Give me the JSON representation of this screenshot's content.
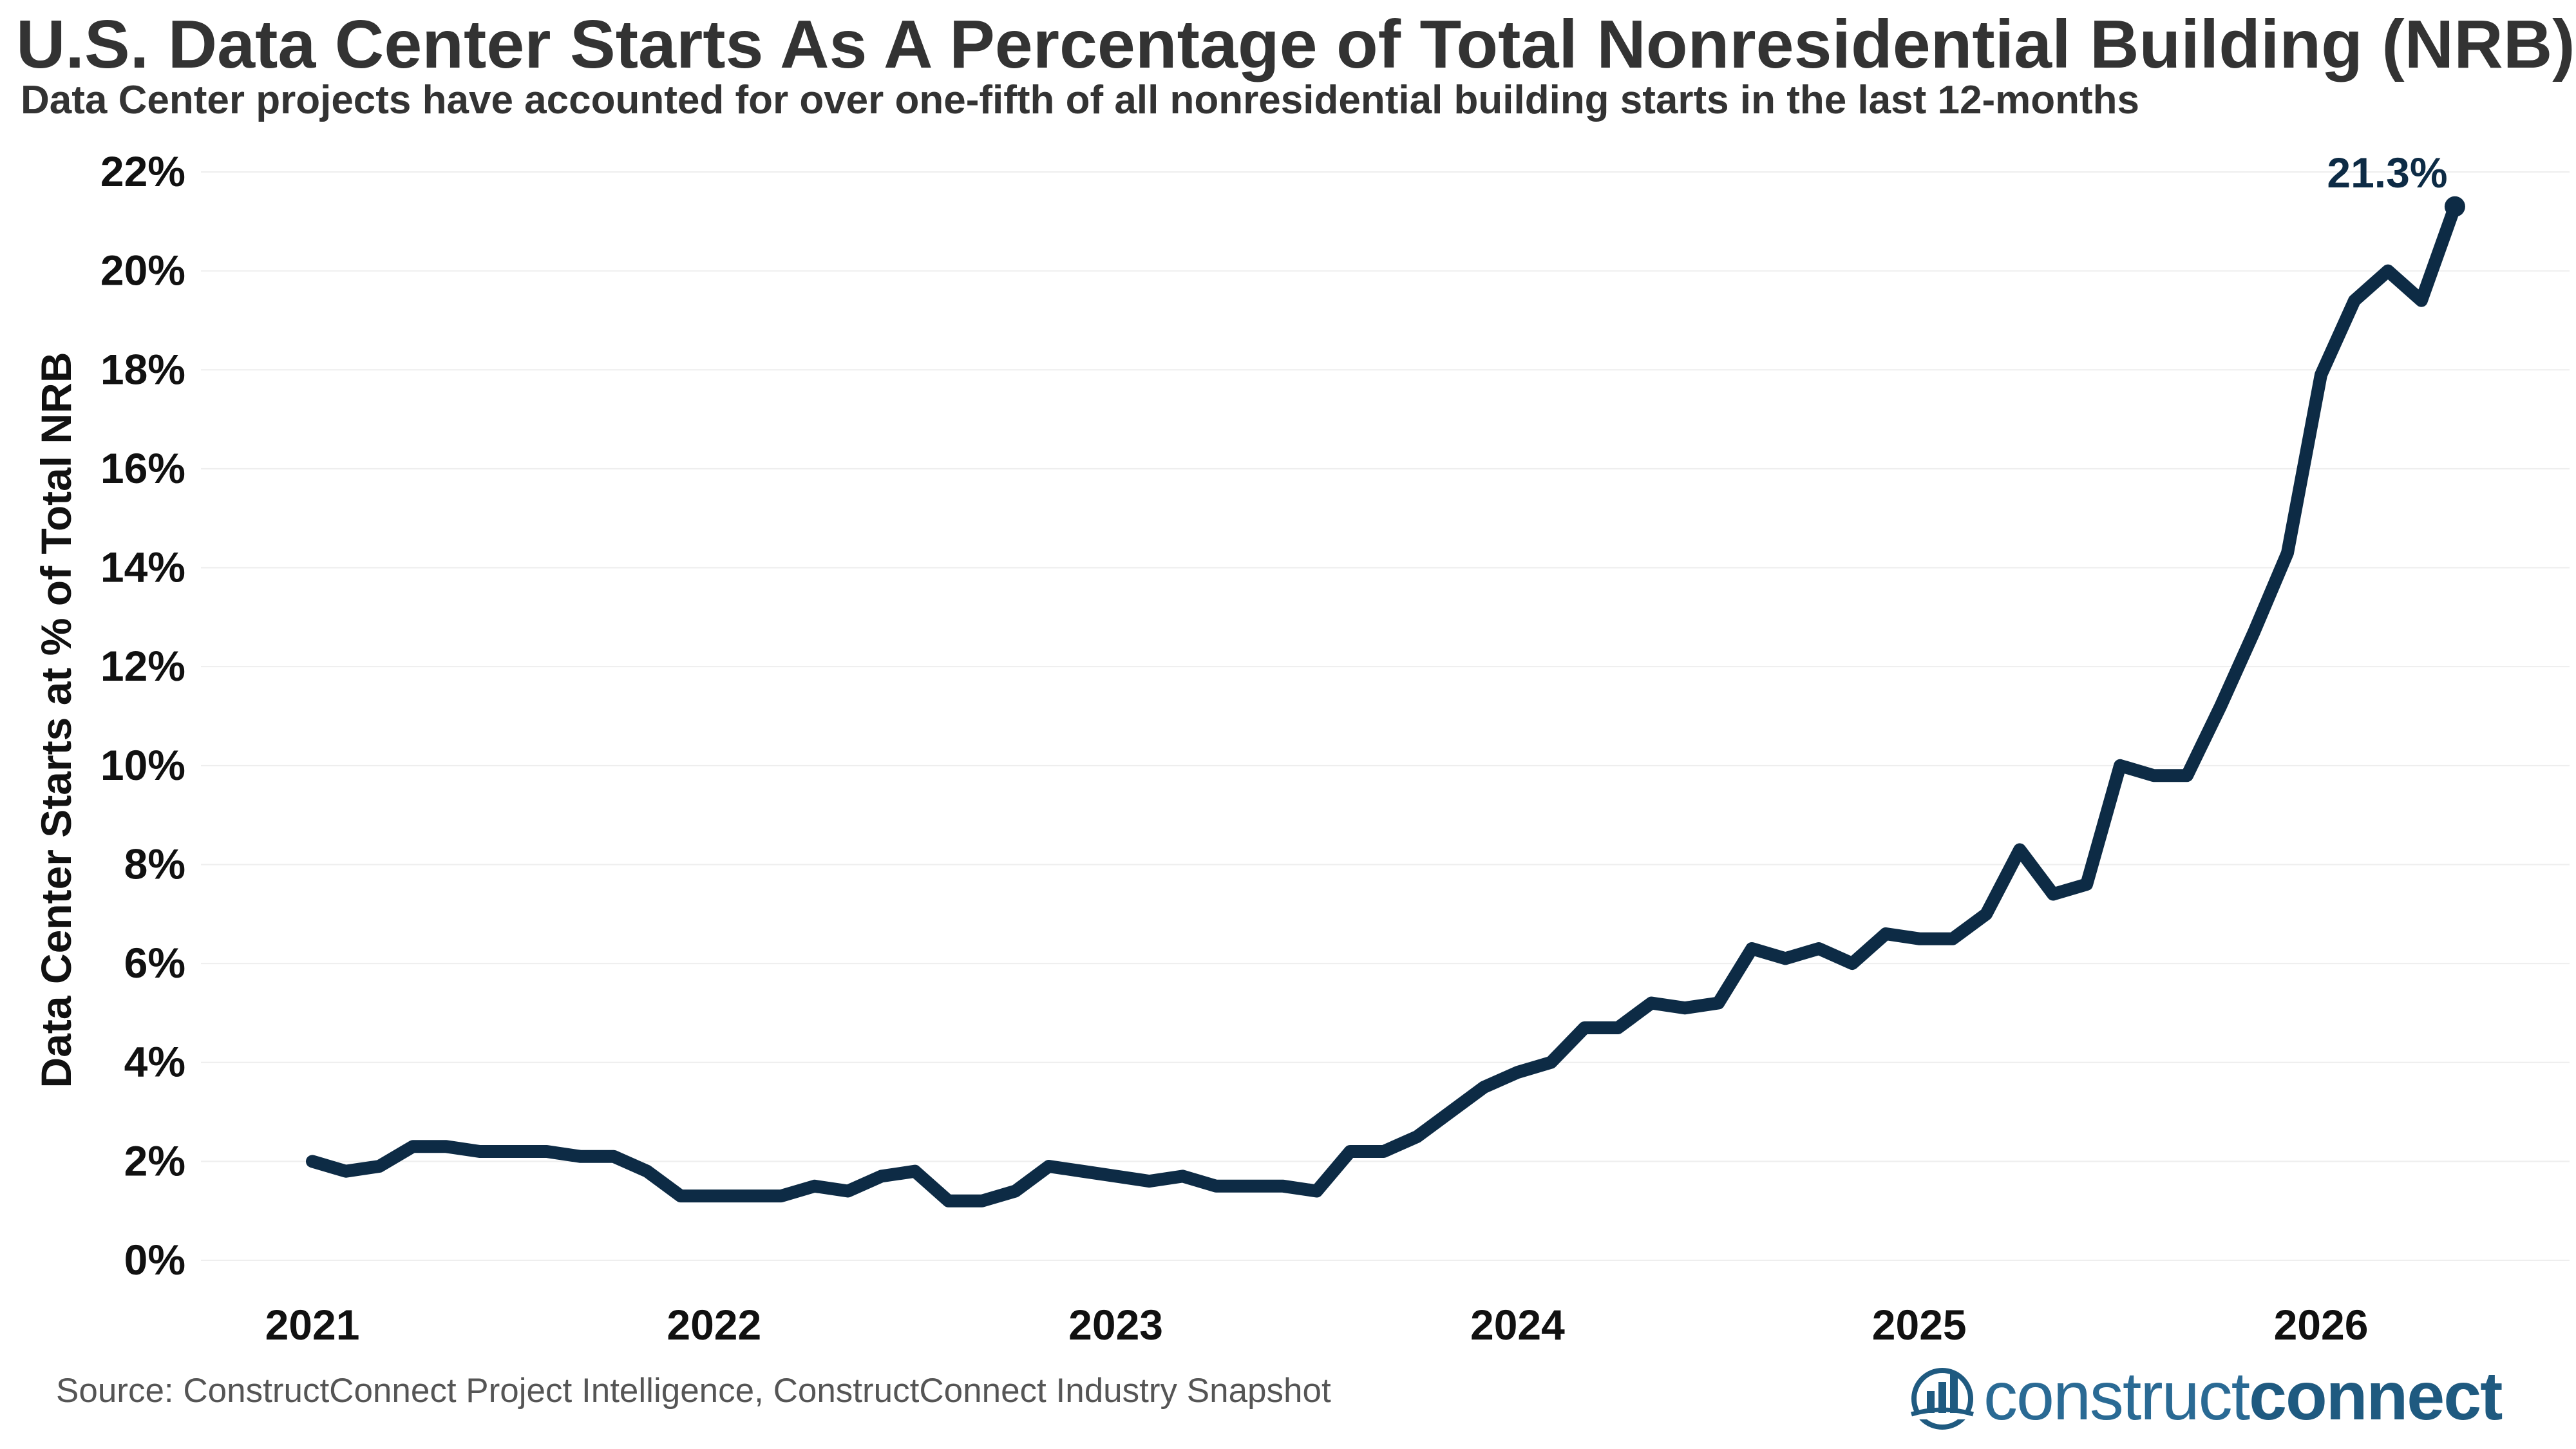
{
  "title": "U.S. Data Center Starts As A Percentage of Total Nonresidential Building (NRB)",
  "subtitle": "Data Center projects have accounted for over one-fifth of all nonresidential building starts in the last 12-months",
  "source": "Source: ConstructConnect Project Intelligence, ConstructConnect Industry Snapshot",
  "brand": {
    "name_light": "construct",
    "name_bold": "connect",
    "color": "#1f5a80"
  },
  "colors": {
    "line": "#0d2b45",
    "grid": "#eeeeee",
    "title_text": "#333333"
  },
  "chart_data": {
    "type": "line",
    "title": "U.S. Data Center Starts As A Percentage of Total Nonresidential Building (NRB)",
    "subtitle": "Data Center projects have accounted for over one-fifth of all nonresidential building starts in the last 12-months",
    "ylabel": "Data Center Starts at % of Total NRB",
    "xlabel": "",
    "ylim": [
      0,
      22
    ],
    "y_ticks": [
      0,
      2,
      4,
      6,
      8,
      10,
      12,
      14,
      16,
      18,
      20,
      22
    ],
    "y_tick_labels": [
      "0%",
      "2%",
      "4%",
      "6%",
      "8%",
      "10%",
      "12%",
      "14%",
      "16%",
      "18%",
      "20%",
      "22%"
    ],
    "x_ticks": [
      2021,
      2022,
      2023,
      2024,
      2025,
      2026
    ],
    "x_tick_labels": [
      "2021",
      "2022",
      "2023",
      "2024",
      "2025",
      "2026"
    ],
    "grid": true,
    "legend": false,
    "series": [
      {
        "color": "#0d2b45",
        "x": [
          "2021-01",
          "2021-02",
          "2021-03",
          "2021-04",
          "2021-05",
          "2021-06",
          "2021-07",
          "2021-08",
          "2021-09",
          "2021-10",
          "2021-11",
          "2021-12",
          "2022-01",
          "2022-02",
          "2022-03",
          "2022-04",
          "2022-05",
          "2022-06",
          "2022-07",
          "2022-08",
          "2022-09",
          "2022-10",
          "2022-11",
          "2022-12",
          "2023-01",
          "2023-02",
          "2023-03",
          "2023-04",
          "2023-05",
          "2023-06",
          "2023-07",
          "2023-08",
          "2023-09",
          "2023-10",
          "2023-11",
          "2023-12",
          "2024-01",
          "2024-02",
          "2024-03",
          "2024-04",
          "2024-05",
          "2024-06",
          "2024-07",
          "2024-08",
          "2024-09",
          "2024-10",
          "2024-11",
          "2024-12",
          "2025-01",
          "2025-02",
          "2025-03",
          "2025-04",
          "2025-05",
          "2025-06",
          "2025-07",
          "2025-08",
          "2025-09",
          "2025-10",
          "2025-11",
          "2025-12",
          "2026-01",
          "2026-02",
          "2026-03",
          "2026-04",
          "2026-05"
        ],
        "values": [
          2.0,
          1.8,
          1.9,
          2.3,
          2.3,
          2.2,
          2.2,
          2.2,
          2.1,
          2.1,
          1.8,
          1.3,
          1.3,
          1.3,
          1.3,
          1.5,
          1.4,
          1.7,
          1.8,
          1.2,
          1.2,
          1.4,
          1.9,
          1.8,
          1.7,
          1.6,
          1.7,
          1.5,
          1.5,
          1.5,
          1.4,
          2.2,
          2.2,
          2.5,
          3.0,
          3.5,
          3.8,
          4.0,
          4.7,
          4.7,
          5.2,
          5.1,
          5.2,
          6.3,
          6.1,
          6.3,
          6.0,
          6.6,
          6.5,
          6.5,
          7.0,
          8.3,
          7.4,
          7.6,
          10.0,
          9.8,
          9.8,
          11.2,
          12.7,
          14.3,
          17.9,
          19.4,
          20.0,
          19.4,
          21.3
        ]
      }
    ],
    "annotations": [
      {
        "text": "21.3%",
        "x": "2026-05",
        "y": 21.3
      }
    ]
  }
}
